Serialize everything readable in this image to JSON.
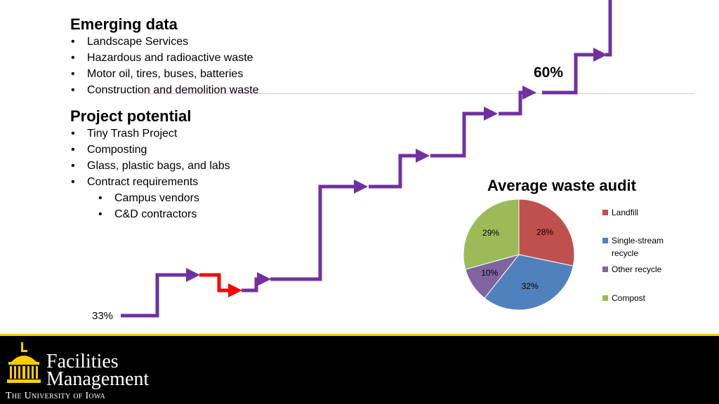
{
  "emerging": {
    "title": "Emerging data",
    "items": [
      "Landscape Services",
      "Hazardous and radioactive waste",
      "Motor oil, tires, buses, batteries",
      "Construction and demolition waste"
    ]
  },
  "potential": {
    "title": "Project potential",
    "items": [
      "Tiny Trash Project",
      "Composting",
      "Glass, plastic bags, and labs",
      "Contract requirements"
    ],
    "subitems": [
      "Campus vendors",
      "C&D contractors"
    ]
  },
  "progress": {
    "start_label": "33%",
    "goal_label": "60%",
    "colors": {
      "path": "#7030a0",
      "setback": "#ff0000",
      "goal_line": "#e8d27a"
    }
  },
  "chart_data": {
    "type": "pie",
    "title": "Average waste audit",
    "slices": [
      {
        "name": "Landfill",
        "value": 28,
        "label": "28%",
        "color": "#c0504d"
      },
      {
        "name": "Single-stream recycle",
        "value": 32,
        "label": "32%",
        "color": "#4f81bd"
      },
      {
        "name": "Other recycle",
        "value": 10,
        "label": "10%",
        "color": "#8064a2"
      },
      {
        "name": "Compost",
        "value": 29,
        "label": "29%",
        "color": "#9bbb59"
      }
    ],
    "legend_position": "right"
  },
  "footer": {
    "line1": "Facilities",
    "line2": "Management",
    "line3": "The University of Iowa",
    "accent": "#ffcd00"
  }
}
